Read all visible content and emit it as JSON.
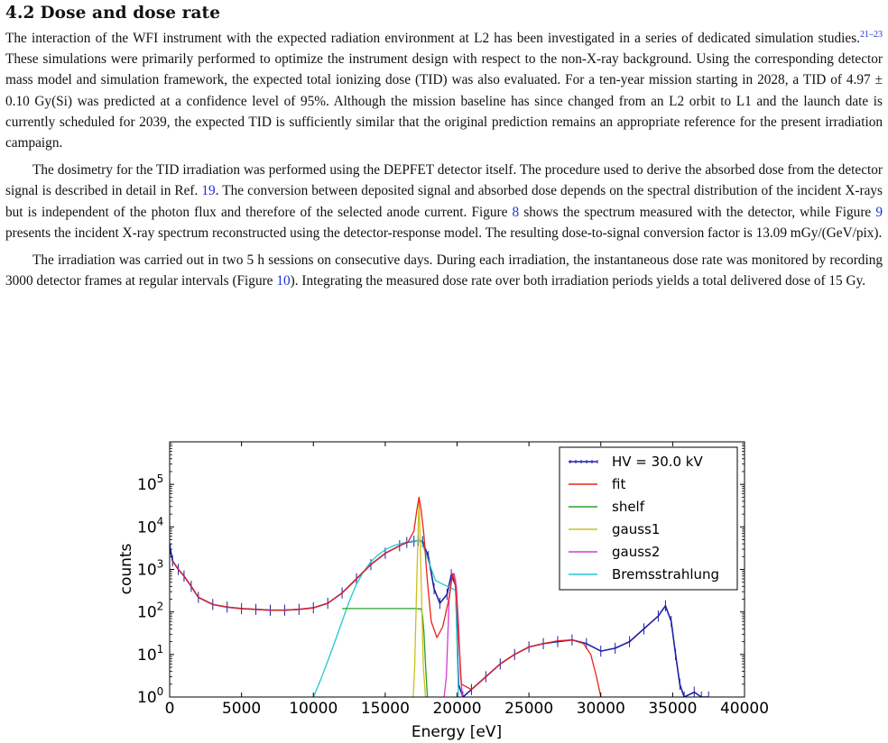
{
  "section": {
    "number": "4.2",
    "title": "Dose and dose rate"
  },
  "paragraphs": {
    "p1": {
      "a": "The interaction of the WFI instrument with the expected radiation environment at L2 has been investigated in a series of dedicated simulation studies.",
      "cite": "21–23",
      "b": " These simulations were primarily performed to optimize the instrument design with respect to the non-X-ray background. Using the corresponding detector mass model and simulation framework, the expected total ionizing dose (TID) was also evaluated. For a ten-year mission starting in 2028, a TID of 4.97 ± 0.10 Gy(Si) was predicted at a confidence level of 95%. Although the mission baseline has since changed from an L2 orbit to L1 and the launch date is currently scheduled for 2039, the expected TID is sufficiently similar that the original prediction remains an appropriate reference for the present irradiation campaign."
    },
    "p2": {
      "a": "The dosimetry for the TID irradiation was performed using the DEPFET detector itself. The procedure used to derive the absorbed dose from the detector signal is described in detail in Ref. ",
      "ref1": "19",
      "b": ". The conversion between deposited signal and absorbed dose depends on the spectral distribution of the incident X-rays but is independent of the photon flux and therefore of the selected anode current. Figure ",
      "ref2": "8",
      "c": " shows the spectrum measured with the detector, while Figure ",
      "ref3": "9",
      "d": " presents the incident X-ray spectrum reconstructed using the detector-response model. The resulting dose-to-signal conversion factor is 13.09 mGy/(GeV/pix)."
    },
    "p3": {
      "a": "The irradiation was carried out in two 5 h sessions on consecutive days. During each irradiation, the instantaneous dose rate was monitored by recording 3000 detector frames at regular intervals (Figure ",
      "ref1": "10",
      "b": "). Integrating the measured dose rate over both irradiation periods yields a total delivered dose of 15 Gy."
    }
  },
  "chart_data": {
    "type": "line",
    "title": "",
    "xlabel": "Energy [eV]",
    "ylabel": "counts",
    "xlim": [
      0,
      40000
    ],
    "ylim_log10": [
      0,
      6
    ],
    "log_y": true,
    "grid": false,
    "legend_placement": "top-right",
    "x_ticks": [
      "0",
      "5000",
      "10000",
      "15000",
      "20000",
      "25000",
      "30000",
      "35000",
      "40000"
    ],
    "y_ticks": [
      {
        "base": "10",
        "exp": "0"
      },
      {
        "base": "10",
        "exp": "1"
      },
      {
        "base": "10",
        "exp": "2"
      },
      {
        "base": "10",
        "exp": "3"
      },
      {
        "base": "10",
        "exp": "4"
      },
      {
        "base": "10",
        "exp": "5"
      }
    ],
    "colors": {
      "data": "#1f1fa8",
      "fit": "#e8231a",
      "shelf": "#2aa02a",
      "gauss1": "#c9c21a",
      "gauss2": "#d33bd3",
      "brems": "#22c8cc"
    },
    "series": [
      {
        "name": "HV = 30.0 kV",
        "key": "data",
        "x": [
          50,
          200,
          600,
          1000,
          1500,
          2000,
          3000,
          4000,
          5000,
          6000,
          7000,
          8000,
          9000,
          10000,
          11000,
          12000,
          13000,
          14000,
          15000,
          16000,
          16500,
          17000,
          17300,
          17600,
          18000,
          18400,
          18800,
          19300,
          19600,
          19900,
          20100,
          20400,
          21000,
          22000,
          23000,
          24000,
          25000,
          26000,
          27000,
          28000,
          29000,
          30000,
          31000,
          32000,
          33000,
          34000,
          34500,
          34900,
          35200,
          35500,
          35800,
          36500,
          37000,
          37500
        ],
        "y": [
          3000,
          1600,
          1000,
          700,
          400,
          220,
          150,
          130,
          120,
          115,
          110,
          110,
          115,
          125,
          160,
          280,
          600,
          1300,
          2400,
          3600,
          4300,
          4600,
          4800,
          4500,
          2000,
          350,
          160,
          260,
          750,
          420,
          2,
          1,
          1.5,
          3,
          6,
          10,
          15,
          18,
          20,
          22,
          18,
          12,
          14,
          20,
          40,
          80,
          140,
          60,
          10,
          2,
          1,
          1.3,
          1,
          1
        ]
      },
      {
        "name": "fit",
        "key": "fit",
        "x": [
          200,
          600,
          1000,
          1500,
          2000,
          3000,
          4000,
          5000,
          6000,
          7000,
          8000,
          9000,
          10000,
          11000,
          12000,
          13000,
          14000,
          15000,
          16000,
          16600,
          17000,
          17200,
          17350,
          17500,
          17700,
          17900,
          18200,
          18600,
          19000,
          19400,
          19700,
          19900,
          20100,
          20300,
          21000,
          22000,
          23000,
          24000,
          25000,
          26000,
          27000,
          28000,
          28800,
          29300,
          29700,
          30000
        ],
        "y": [
          1600,
          1000,
          700,
          400,
          220,
          150,
          130,
          120,
          115,
          110,
          110,
          115,
          125,
          160,
          280,
          600,
          1300,
          2400,
          3600,
          4500,
          8000,
          25000,
          50000,
          25000,
          6000,
          700,
          60,
          25,
          45,
          180,
          800,
          400,
          30,
          2,
          1.5,
          3,
          6,
          10,
          15,
          18,
          21,
          22,
          18,
          10,
          3,
          1
        ]
      },
      {
        "name": "shelf",
        "key": "shelf",
        "x": [
          12000,
          13000,
          14000,
          15000,
          16000,
          17000,
          17500,
          17600,
          17700,
          17800,
          17900,
          18000
        ],
        "y": [
          120,
          120,
          120,
          120,
          120,
          120,
          118,
          80,
          30,
          6,
          1.5,
          0.5
        ]
      },
      {
        "name": "gauss1",
        "key": "gauss1",
        "x": [
          16900,
          17050,
          17200,
          17350,
          17500,
          17650,
          17800,
          17950
        ],
        "y": [
          0.5,
          5,
          600,
          45000,
          600,
          5,
          1,
          0.5
        ]
      },
      {
        "name": "gauss2",
        "key": "gauss2",
        "x": [
          19000,
          19250,
          19450,
          19650,
          19800,
          19950,
          20100,
          20250,
          20450
        ],
        "y": [
          0.5,
          3,
          200,
          700,
          800,
          400,
          50,
          3,
          0.5
        ]
      },
      {
        "name": "Bremsstrahlung",
        "key": "brems",
        "x": [
          10000,
          10500,
          11000,
          11500,
          12000,
          12500,
          13000,
          13500,
          14000,
          14500,
          15000,
          15500,
          16000,
          16500,
          17000,
          17500,
          18000,
          18500,
          19000,
          19500,
          19900,
          20100
        ],
        "y": [
          1,
          2.5,
          7,
          20,
          60,
          180,
          450,
          900,
          1500,
          2200,
          2900,
          3500,
          4000,
          4400,
          4700,
          4800,
          1600,
          550,
          450,
          380,
          320,
          1
        ]
      }
    ]
  }
}
